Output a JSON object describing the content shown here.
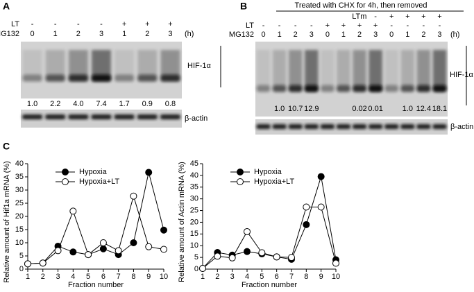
{
  "panel_a": {
    "label": "A",
    "lt_label": "LT",
    "mg132_label": "MG132",
    "lt_row": [
      "-",
      "-",
      "-",
      "-",
      "+",
      "+",
      "+"
    ],
    "mg132_row": [
      "0",
      "1",
      "2",
      "3",
      "1",
      "2",
      "3"
    ],
    "unit": "(h)",
    "band_label": "HIF-1α",
    "quantities": [
      "1.0",
      "2.2",
      "4.0",
      "7.4",
      "1.7",
      "0.9",
      "0.8"
    ],
    "actin_label": "β-actin"
  },
  "panel_b": {
    "label": "B",
    "header": "Treated with CHX for 4h, then removed",
    "ltm_label": "LTm",
    "lt_label": "LT",
    "mg132_label": "MG132",
    "ltm_row": [
      null,
      null,
      null,
      null,
      null,
      null,
      null,
      "-",
      "+",
      "+",
      "+",
      "+"
    ],
    "lt_row": [
      "-",
      "-",
      "-",
      "-",
      "+",
      "+",
      "+",
      "+",
      "-",
      "-",
      "-",
      "-"
    ],
    "mg132_row": [
      "0",
      "1",
      "2",
      "3",
      "0",
      "1",
      "2",
      "3",
      "0",
      "1",
      "2",
      "3"
    ],
    "unit": "(h)",
    "band_label": "HIF-1α",
    "quantities": [
      null,
      "1.0",
      "10.7",
      "12.9",
      null,
      null,
      "0.02",
      "0.01",
      null,
      "1.0",
      "12.4",
      "18.1"
    ],
    "actin_label": "β-actin"
  },
  "panel_c": {
    "label": "C"
  },
  "chart_data": [
    {
      "type": "line",
      "xlabel": "Fraction number",
      "ylabel": "Relative amount of Hif1a mRNA (%)",
      "x": [
        1,
        2,
        3,
        4,
        5,
        6,
        7,
        8,
        9,
        10
      ],
      "xlim": [
        1,
        10
      ],
      "xticks": [
        1,
        2,
        3,
        4,
        5,
        6,
        7,
        8,
        9,
        10
      ],
      "ylim": [
        0,
        40
      ],
      "yticks": [
        0,
        5,
        10,
        15,
        20,
        25,
        30,
        35,
        40
      ],
      "grid": false,
      "legend": "top-left",
      "series": [
        {
          "name": "Hypoxia",
          "color": "#000000",
          "marker": "filled",
          "values": [
            2,
            2.3,
            8.7,
            6.5,
            5.5,
            7.7,
            5.5,
            10,
            36.7,
            14.8
          ]
        },
        {
          "name": "Hypoxia+LT",
          "color": "#000000",
          "marker": "open",
          "values": [
            2,
            2.3,
            7,
            22,
            5.5,
            10,
            7,
            27.7,
            8.5,
            7.5
          ]
        }
      ]
    },
    {
      "type": "line",
      "xlabel": "Fraction number",
      "ylabel": "Relative amount of Actin mRNA (%)",
      "x": [
        1,
        2,
        3,
        4,
        5,
        6,
        7,
        8,
        9,
        10
      ],
      "xlim": [
        1,
        10
      ],
      "xticks": [
        1,
        2,
        3,
        4,
        5,
        6,
        7,
        8,
        9,
        10
      ],
      "ylim": [
        0,
        45
      ],
      "yticks": [
        0,
        5,
        10,
        15,
        20,
        25,
        30,
        35,
        40,
        45
      ],
      "grid": false,
      "legend": "top-left",
      "series": [
        {
          "name": "Hypoxia",
          "color": "#000000",
          "marker": "filled",
          "values": [
            0.3,
            7.1,
            6,
            7.5,
            6.5,
            5.2,
            4.2,
            19,
            39.5,
            4
          ]
        },
        {
          "name": "Hypoxia+LT",
          "color": "#000000",
          "marker": "open",
          "values": [
            0.3,
            5.5,
            4.8,
            16,
            7,
            5.2,
            5,
            26.5,
            26.5,
            2.5
          ]
        }
      ]
    }
  ]
}
